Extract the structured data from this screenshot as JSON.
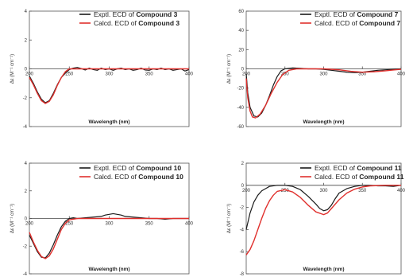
{
  "colors": {
    "expt": "#1a1a1a",
    "calc": "#e0302d"
  },
  "chart_data": [
    {
      "type": "line",
      "xlabel": "Wavelength (nm)",
      "ylabel": "Δε (M⁻¹ cm⁻¹)",
      "xlim": [
        200,
        400
      ],
      "ylim": [
        -4,
        4
      ],
      "xticks": [
        "200",
        "250",
        "300",
        "350",
        "400"
      ],
      "yticks": [
        "4",
        "2",
        "0",
        "-2",
        "-4"
      ],
      "series": [
        {
          "role": "expt",
          "legend_prefix": "Exptl.  ECD of ",
          "legend_bold": "Compound 3",
          "points": [
            [
              200,
              -0.5
            ],
            [
              205,
              -1.0
            ],
            [
              210,
              -1.6
            ],
            [
              215,
              -2.1
            ],
            [
              220,
              -2.35
            ],
            [
              225,
              -2.2
            ],
            [
              230,
              -1.7
            ],
            [
              235,
              -1.1
            ],
            [
              240,
              -0.6
            ],
            [
              245,
              -0.3
            ],
            [
              250,
              -0.05
            ],
            [
              255,
              0.05
            ],
            [
              260,
              0.1
            ],
            [
              265,
              0.02
            ],
            [
              270,
              -0.08
            ],
            [
              275,
              0.05
            ],
            [
              280,
              -0.05
            ],
            [
              285,
              -0.1
            ],
            [
              290,
              0.05
            ],
            [
              295,
              -0.05
            ],
            [
              300,
              0.0
            ],
            [
              305,
              -0.1
            ],
            [
              310,
              0.0
            ],
            [
              315,
              0.05
            ],
            [
              320,
              -0.05
            ],
            [
              325,
              0.0
            ],
            [
              330,
              -0.1
            ],
            [
              335,
              -0.05
            ],
            [
              340,
              0.05
            ],
            [
              345,
              -0.08
            ],
            [
              350,
              -0.1
            ],
            [
              355,
              0.0
            ],
            [
              360,
              -0.05
            ],
            [
              365,
              0.05
            ],
            [
              370,
              -0.05
            ],
            [
              375,
              0.0
            ],
            [
              380,
              -0.1
            ],
            [
              385,
              -0.05
            ],
            [
              390,
              0.0
            ],
            [
              395,
              -0.15
            ],
            [
              400,
              -0.05
            ]
          ]
        },
        {
          "role": "calc",
          "legend_prefix": "Calcd.  ECD of ",
          "legend_bold": "Compound 3",
          "points": [
            [
              200,
              -0.6
            ],
            [
              205,
              -1.1
            ],
            [
              210,
              -1.7
            ],
            [
              215,
              -2.2
            ],
            [
              220,
              -2.4
            ],
            [
              225,
              -2.25
            ],
            [
              230,
              -1.8
            ],
            [
              235,
              -1.15
            ],
            [
              240,
              -0.6
            ],
            [
              245,
              -0.2
            ],
            [
              250,
              0.0
            ],
            [
              260,
              0.0
            ],
            [
              300,
              0.0
            ],
            [
              350,
              0.0
            ],
            [
              400,
              0.0
            ]
          ]
        }
      ]
    },
    {
      "type": "line",
      "xlabel": "Wavelength (nm)",
      "ylabel": "Δε (M⁻¹ cm⁻¹)",
      "xlim": [
        200,
        400
      ],
      "ylim": [
        -60,
        60
      ],
      "xticks": [
        "200",
        "250",
        "300",
        "350",
        "400"
      ],
      "yticks": [
        "60",
        "40",
        "20",
        "0",
        "-20",
        "-40",
        "-60"
      ],
      "series": [
        {
          "role": "expt",
          "legend_prefix": "Exptl.  ECD of ",
          "legend_bold": "Compound 7",
          "points": [
            [
              200,
              -5
            ],
            [
              202,
              -25
            ],
            [
              205,
              -40
            ],
            [
              210,
              -49
            ],
            [
              215,
              -50
            ],
            [
              220,
              -46
            ],
            [
              225,
              -38
            ],
            [
              230,
              -28
            ],
            [
              235,
              -17
            ],
            [
              240,
              -8
            ],
            [
              245,
              -2
            ],
            [
              250,
              0
            ],
            [
              260,
              1
            ],
            [
              270,
              0.5
            ],
            [
              280,
              0
            ],
            [
              290,
              0
            ],
            [
              300,
              -0.5
            ],
            [
              310,
              -1.5
            ],
            [
              320,
              -2.5
            ],
            [
              330,
              -3.5
            ],
            [
              340,
              -4
            ],
            [
              350,
              -3.5
            ],
            [
              360,
              -2.5
            ],
            [
              370,
              -1.5
            ],
            [
              380,
              -1
            ],
            [
              390,
              -0.5
            ],
            [
              400,
              0
            ]
          ]
        },
        {
          "role": "calc",
          "legend_prefix": "Calcd.  ECD of ",
          "legend_bold": "Compound 7",
          "points": [
            [
              200,
              -10
            ],
            [
              202,
              -30
            ],
            [
              205,
              -44
            ],
            [
              208,
              -50
            ],
            [
              212,
              -51
            ],
            [
              218,
              -47
            ],
            [
              225,
              -38
            ],
            [
              232,
              -26
            ],
            [
              240,
              -14
            ],
            [
              247,
              -6
            ],
            [
              255,
              -1.5
            ],
            [
              265,
              0
            ],
            [
              280,
              0
            ],
            [
              300,
              0
            ],
            [
              320,
              -1
            ],
            [
              335,
              -2.5
            ],
            [
              350,
              -3.5
            ],
            [
              365,
              -3
            ],
            [
              380,
              -2
            ],
            [
              390,
              -1.2
            ],
            [
              400,
              -0.5
            ]
          ]
        }
      ]
    },
    {
      "type": "line",
      "xlabel": "Wavelength (nm)",
      "ylabel": "Δε (M⁻¹ cm⁻¹)",
      "xlim": [
        200,
        400
      ],
      "ylim": [
        -4,
        4
      ],
      "xticks": [
        "200",
        "250",
        "300",
        "350",
        "400"
      ],
      "yticks": [
        "4",
        "2",
        "0",
        "-2",
        "-4"
      ],
      "series": [
        {
          "role": "expt",
          "legend_prefix": "Exptl.  ECD of ",
          "legend_bold": "Compound 10",
          "points": [
            [
              200,
              -1.2
            ],
            [
              205,
              -1.8
            ],
            [
              210,
              -2.4
            ],
            [
              215,
              -2.8
            ],
            [
              220,
              -2.85
            ],
            [
              225,
              -2.5
            ],
            [
              230,
              -1.9
            ],
            [
              235,
              -1.2
            ],
            [
              240,
              -0.6
            ],
            [
              245,
              -0.2
            ],
            [
              250,
              0.0
            ],
            [
              255,
              0.05
            ],
            [
              260,
              0.0
            ],
            [
              270,
              0.05
            ],
            [
              280,
              0.1
            ],
            [
              290,
              0.15
            ],
            [
              295,
              0.25
            ],
            [
              300,
              0.3
            ],
            [
              305,
              0.35
            ],
            [
              310,
              0.3
            ],
            [
              315,
              0.25
            ],
            [
              320,
              0.15
            ],
            [
              330,
              0.1
            ],
            [
              340,
              0.05
            ],
            [
              350,
              0.0
            ],
            [
              360,
              0.0
            ],
            [
              370,
              -0.05
            ],
            [
              380,
              0.0
            ],
            [
              390,
              0.0
            ],
            [
              400,
              0.0
            ]
          ]
        },
        {
          "role": "calc",
          "legend_prefix": "Calcd.  ECD of ",
          "legend_bold": "Compound 10",
          "points": [
            [
              200,
              -1.0
            ],
            [
              205,
              -1.7
            ],
            [
              210,
              -2.3
            ],
            [
              215,
              -2.75
            ],
            [
              220,
              -2.9
            ],
            [
              225,
              -2.7
            ],
            [
              230,
              -2.2
            ],
            [
              235,
              -1.5
            ],
            [
              240,
              -0.8
            ],
            [
              245,
              -0.35
            ],
            [
              250,
              -0.1
            ],
            [
              260,
              0.0
            ],
            [
              300,
              0.0
            ],
            [
              350,
              0.0
            ],
            [
              400,
              0.0
            ]
          ]
        }
      ]
    },
    {
      "type": "line",
      "xlabel": "Wavelength (nm)",
      "ylabel": "Δε (M⁻¹ cm⁻¹)",
      "xlim": [
        200,
        400
      ],
      "ylim": [
        -8,
        2
      ],
      "xticks": [
        "200",
        "250",
        "300",
        "350",
        "400"
      ],
      "yticks": [
        "2",
        "0",
        "-2",
        "-4",
        "-6",
        "-8"
      ],
      "series": [
        {
          "role": "expt",
          "legend_prefix": "Exptl.  ECD of ",
          "legend_bold": "Compound 11",
          "points": [
            [
              200,
              -4.0
            ],
            [
              205,
              -2.5
            ],
            [
              210,
              -1.5
            ],
            [
              215,
              -0.9
            ],
            [
              220,
              -0.5
            ],
            [
              225,
              -0.3
            ],
            [
              230,
              -0.1
            ],
            [
              240,
              0.0
            ],
            [
              250,
              0.0
            ],
            [
              260,
              -0.1
            ],
            [
              270,
              -0.4
            ],
            [
              280,
              -1.0
            ],
            [
              290,
              -1.7
            ],
            [
              295,
              -2.1
            ],
            [
              300,
              -2.3
            ],
            [
              305,
              -2.2
            ],
            [
              310,
              -1.8
            ],
            [
              315,
              -1.2
            ],
            [
              320,
              -0.7
            ],
            [
              330,
              -0.3
            ],
            [
              340,
              -0.1
            ],
            [
              350,
              0.0
            ],
            [
              360,
              0.0
            ],
            [
              370,
              -0.05
            ],
            [
              380,
              -0.05
            ],
            [
              390,
              -0.1
            ],
            [
              400,
              0.0
            ]
          ]
        },
        {
          "role": "calc",
          "legend_prefix": "Calcd.  ECD of ",
          "legend_bold": "Compound 11",
          "points": [
            [
              200,
              -6.3
            ],
            [
              205,
              -5.8
            ],
            [
              210,
              -5.0
            ],
            [
              215,
              -4.0
            ],
            [
              220,
              -3.0
            ],
            [
              225,
              -2.1
            ],
            [
              230,
              -1.4
            ],
            [
              235,
              -0.9
            ],
            [
              240,
              -0.55
            ],
            [
              250,
              -0.4
            ],
            [
              260,
              -0.6
            ],
            [
              270,
              -1.1
            ],
            [
              280,
              -1.8
            ],
            [
              290,
              -2.4
            ],
            [
              300,
              -2.65
            ],
            [
              305,
              -2.5
            ],
            [
              310,
              -2.1
            ],
            [
              320,
              -1.3
            ],
            [
              330,
              -0.7
            ],
            [
              340,
              -0.35
            ],
            [
              350,
              -0.15
            ],
            [
              360,
              -0.05
            ],
            [
              380,
              0.0
            ],
            [
              400,
              0.0
            ]
          ]
        }
      ]
    }
  ]
}
